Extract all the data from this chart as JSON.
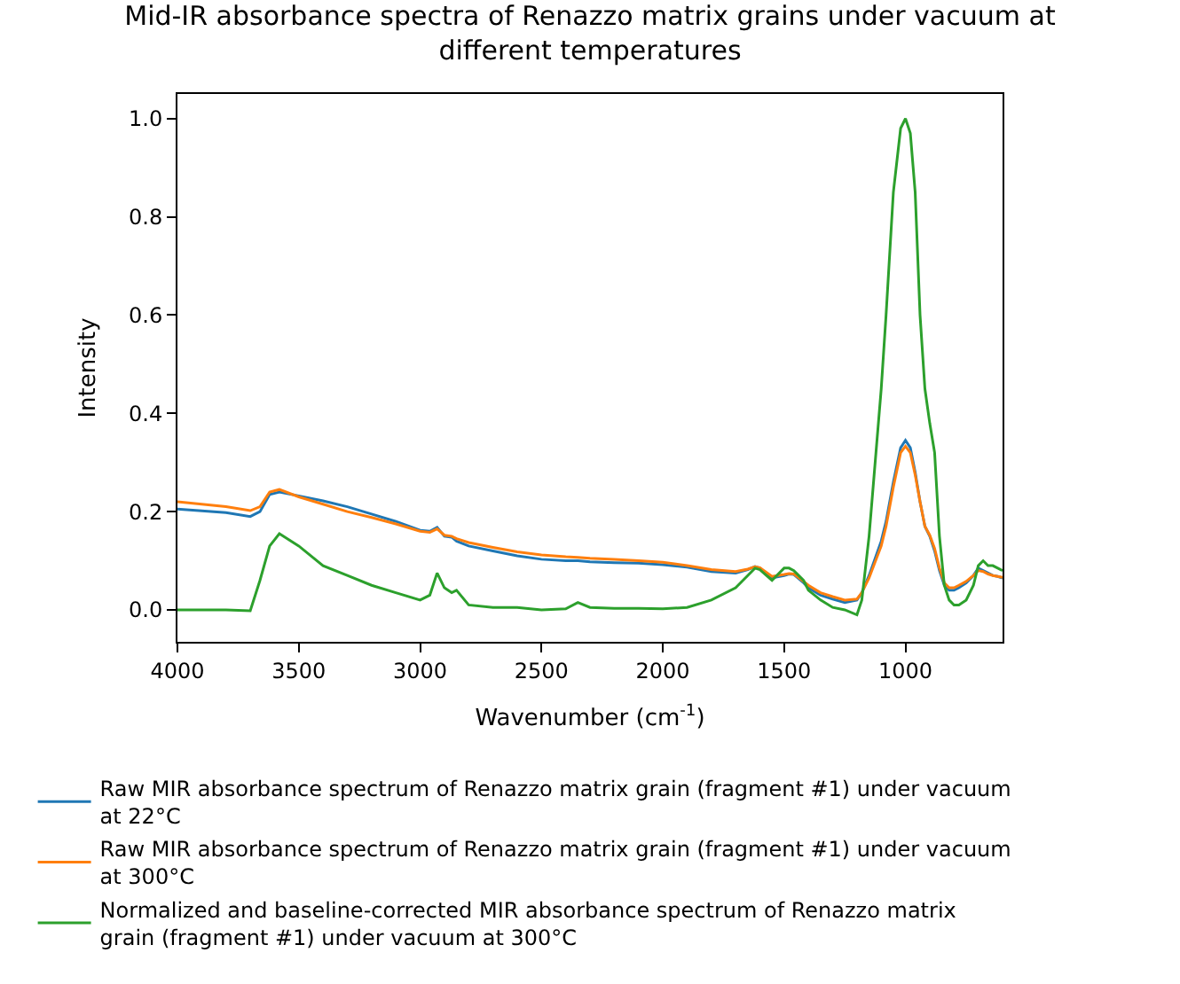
{
  "chart_data": {
    "type": "line",
    "title": "Mid-IR absorbance spectra of Renazzo matrix grains under vacuum at different temperatures",
    "xlabel": "Wavenumber (cm$^{-1}$)",
    "ylabel": "Intensity",
    "x": [
      4000,
      3800,
      3700,
      3660,
      3620,
      3580,
      3500,
      3400,
      3300,
      3200,
      3100,
      3000,
      2960,
      2930,
      2900,
      2870,
      2850,
      2800,
      2700,
      2600,
      2500,
      2400,
      2350,
      2300,
      2200,
      2100,
      2000,
      1900,
      1800,
      1700,
      1650,
      1620,
      1600,
      1550,
      1500,
      1480,
      1460,
      1420,
      1400,
      1350,
      1300,
      1250,
      1200,
      1180,
      1150,
      1100,
      1080,
      1050,
      1020,
      1000,
      980,
      960,
      940,
      920,
      900,
      880,
      860,
      840,
      820,
      800,
      780,
      750,
      720,
      700,
      680,
      660,
      640,
      620,
      600
    ],
    "series": [
      {
        "name": "Raw MIR absorbance spectrum of Renazzo matrix grain (fragment #1) under vacuum at 22°C",
        "color": "#1f77b4",
        "values": [
          0.205,
          0.198,
          0.19,
          0.2,
          0.235,
          0.24,
          0.232,
          0.222,
          0.21,
          0.195,
          0.18,
          0.162,
          0.16,
          0.168,
          0.15,
          0.148,
          0.14,
          0.13,
          0.12,
          0.11,
          0.103,
          0.1,
          0.1,
          0.098,
          0.096,
          0.095,
          0.092,
          0.087,
          0.078,
          0.075,
          0.082,
          0.088,
          0.085,
          0.065,
          0.07,
          0.073,
          0.072,
          0.055,
          0.045,
          0.03,
          0.022,
          0.015,
          0.02,
          0.035,
          0.07,
          0.14,
          0.18,
          0.26,
          0.33,
          0.345,
          0.33,
          0.28,
          0.22,
          0.17,
          0.15,
          0.12,
          0.08,
          0.05,
          0.04,
          0.04,
          0.045,
          0.055,
          0.07,
          0.085,
          0.08,
          0.075,
          0.07,
          0.068,
          0.065
        ]
      },
      {
        "name": "Raw MIR absorbance spectrum of Renazzo matrix grain (fragment #1) under vacuum at 300°C",
        "color": "#ff7f0e",
        "values": [
          0.22,
          0.21,
          0.202,
          0.21,
          0.24,
          0.245,
          0.23,
          0.215,
          0.2,
          0.188,
          0.175,
          0.16,
          0.158,
          0.165,
          0.152,
          0.15,
          0.145,
          0.137,
          0.127,
          0.118,
          0.112,
          0.108,
          0.107,
          0.105,
          0.103,
          0.1,
          0.097,
          0.09,
          0.082,
          0.078,
          0.083,
          0.088,
          0.086,
          0.068,
          0.072,
          0.074,
          0.073,
          0.058,
          0.05,
          0.035,
          0.027,
          0.02,
          0.022,
          0.035,
          0.065,
          0.13,
          0.17,
          0.25,
          0.32,
          0.333,
          0.32,
          0.275,
          0.22,
          0.17,
          0.152,
          0.125,
          0.085,
          0.055,
          0.045,
          0.045,
          0.05,
          0.058,
          0.07,
          0.08,
          0.078,
          0.073,
          0.07,
          0.068,
          0.066
        ]
      },
      {
        "name": "Normalized and baseline-corrected MIR absorbance spectrum of Renazzo matrix grain (fragment #1) under vacuum at 300°C",
        "color": "#2ca02c",
        "values": [
          0.0,
          0.0,
          -0.002,
          0.06,
          0.13,
          0.155,
          0.13,
          0.09,
          0.07,
          0.05,
          0.035,
          0.02,
          0.03,
          0.075,
          0.045,
          0.035,
          0.04,
          0.01,
          0.005,
          0.005,
          0.0,
          0.002,
          0.015,
          0.005,
          0.003,
          0.003,
          0.002,
          0.005,
          0.02,
          0.045,
          0.07,
          0.085,
          0.082,
          0.06,
          0.085,
          0.085,
          0.08,
          0.06,
          0.04,
          0.02,
          0.005,
          0.0,
          -0.01,
          0.02,
          0.15,
          0.45,
          0.6,
          0.85,
          0.98,
          1.0,
          0.97,
          0.85,
          0.6,
          0.45,
          0.38,
          0.32,
          0.15,
          0.05,
          0.02,
          0.01,
          0.01,
          0.02,
          0.05,
          0.09,
          0.1,
          0.09,
          0.09,
          0.085,
          0.08
        ]
      }
    ],
    "xlim": [
      4000,
      600
    ],
    "xticks": [
      4000,
      3500,
      3000,
      2500,
      2000,
      1500,
      1000
    ],
    "ylim": [
      -0.065,
      1.05
    ],
    "yticks": [
      {
        "value": 0,
        "label": "0.0"
      },
      {
        "value": 0.2,
        "label": "0.2"
      },
      {
        "value": 0.4,
        "label": "0.4"
      },
      {
        "value": 0.6,
        "label": "0.6"
      },
      {
        "value": 0.8,
        "label": "0.8"
      },
      {
        "value": 1,
        "label": "1.0"
      }
    ],
    "legend": "bottom",
    "line_style": "solid",
    "marker": "none"
  }
}
